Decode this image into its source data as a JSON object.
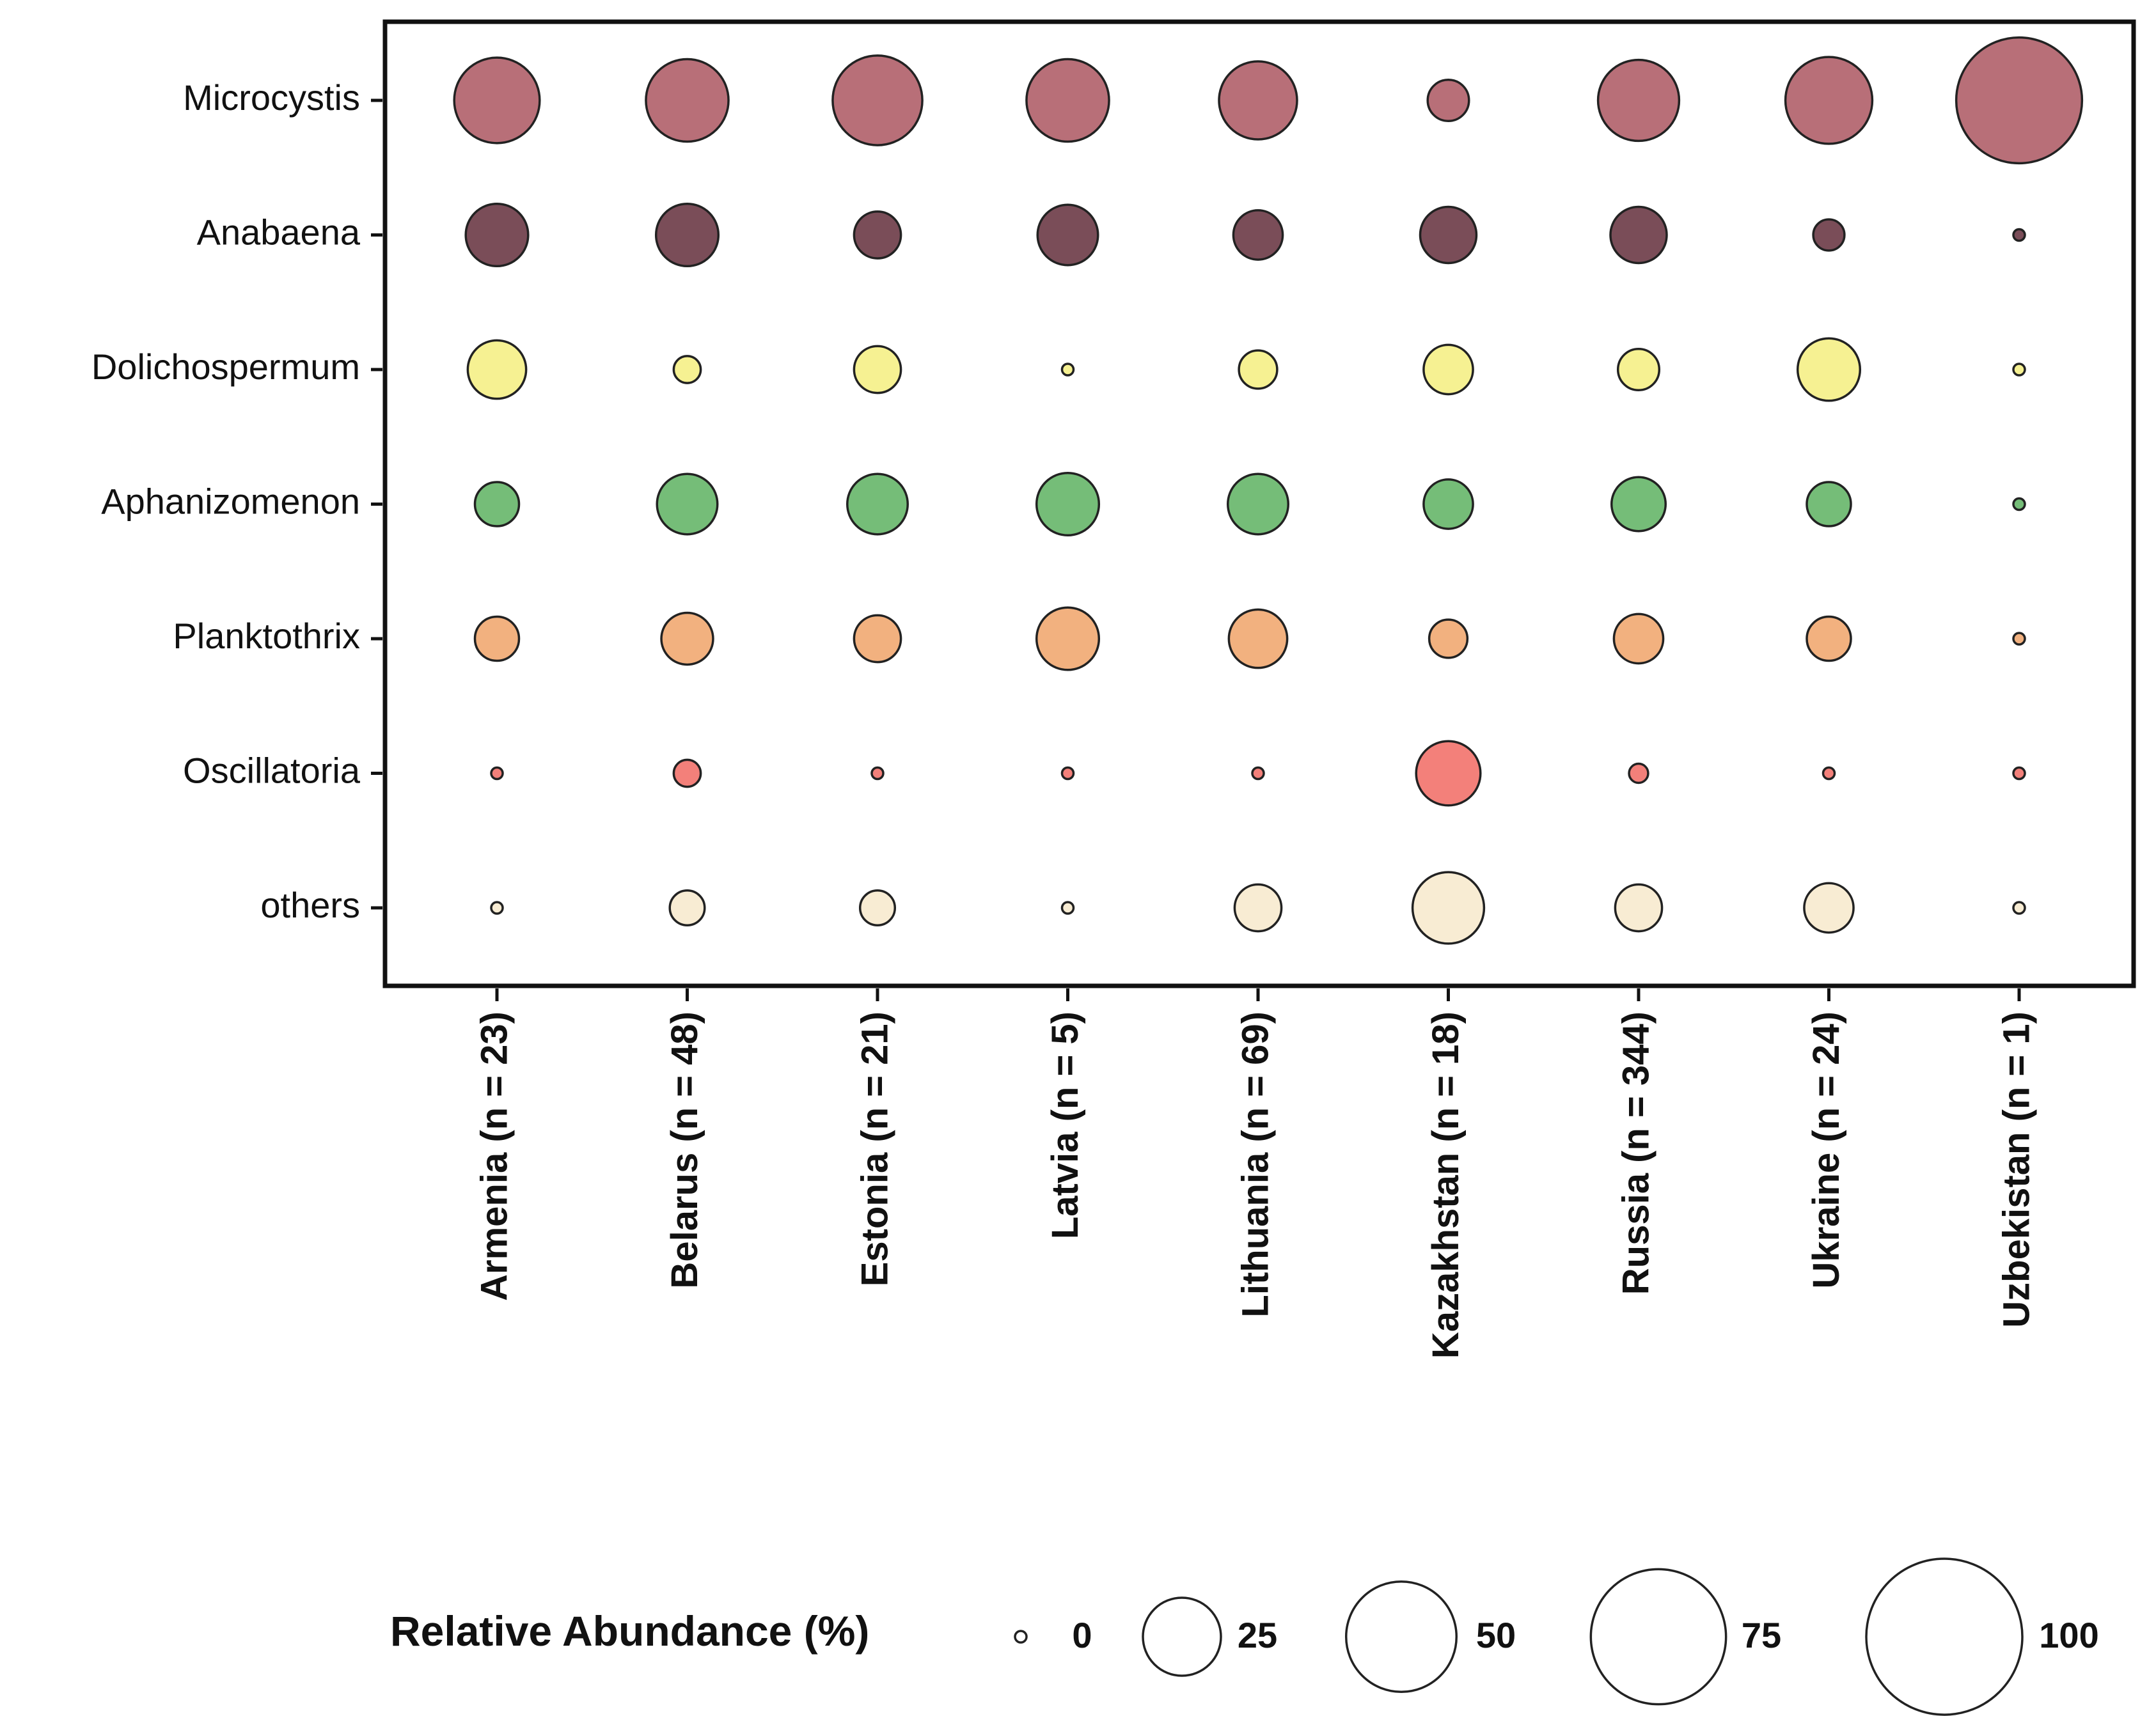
{
  "chart_data": {
    "type": "bubble",
    "x_categories": [
      "Armenia (n =  23)",
      "Belarus (n = 48)",
      "Estonia (n = 21)",
      "Latvia (n = 5)",
      "Lithuania (n = 69)",
      "Kazakhstan (n = 18)",
      "Russia (n = 344)",
      "Ukraine (n = 24)",
      "Uzbekistan (n = 1)"
    ],
    "series": [
      {
        "name": "Microcystis",
        "color": "#b86f78",
        "values": [
          30,
          28,
          33,
          28,
          25,
          7,
          27,
          31,
          65
        ]
      },
      {
        "name": "Anabaena",
        "color": "#7a4d58",
        "values": [
          16,
          16,
          9,
          15,
          10,
          13,
          13,
          4,
          0.5
        ]
      },
      {
        "name": "Dolichospermum",
        "color": "#f6f192",
        "values": [
          14,
          3,
          9,
          0.5,
          6,
          10,
          7,
          16,
          0.5
        ]
      },
      {
        "name": "Aphanizomenon",
        "color": "#75bd78",
        "values": [
          8,
          15,
          15,
          16,
          15,
          10,
          12,
          8,
          0.5
        ]
      },
      {
        "name": "Planktothrix",
        "color": "#f2b17f",
        "values": [
          8,
          11,
          9,
          16,
          14,
          6,
          10,
          8,
          0.5
        ]
      },
      {
        "name": "Oscillatoria",
        "color": "#f3807a",
        "values": [
          0.5,
          3,
          0.5,
          0.5,
          0.5,
          17,
          1.5,
          0.5,
          0.5
        ]
      },
      {
        "name": "others",
        "color": "#f8ecd3",
        "values": [
          0.5,
          5,
          5,
          0.5,
          9,
          21,
          9,
          10,
          0.5
        ]
      }
    ],
    "size_legend": {
      "title": "Relative Abundance (%)",
      "values": [
        0,
        25,
        50,
        75,
        100
      ]
    }
  }
}
